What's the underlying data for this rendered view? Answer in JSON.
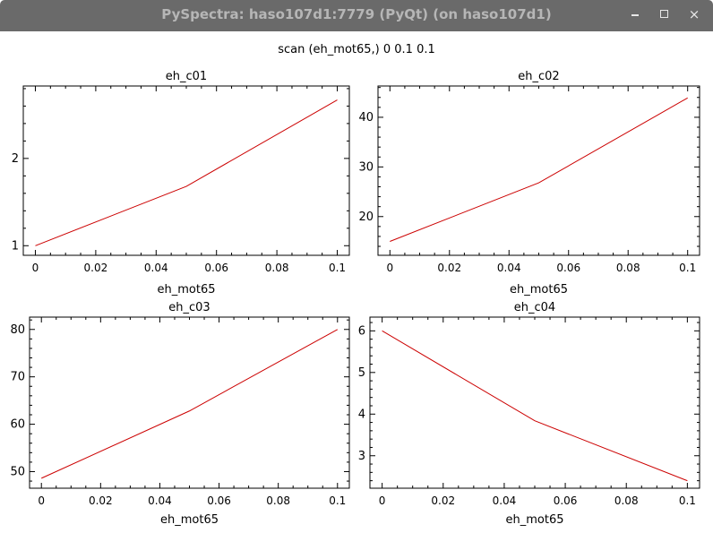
{
  "window": {
    "title": "PySpectra: haso107d1:7779 (PyQt) (on haso107d1)",
    "buttons": [
      "minimize-icon",
      "maximize-icon",
      "close-icon"
    ],
    "close_glyph": "×"
  },
  "figure": {
    "title": "scan (eh_mot65,) 0 0.1 0.1"
  },
  "colors": {
    "line": "#cc0000",
    "titlebar": "#6a6a6a"
  },
  "chart_data": [
    {
      "type": "line",
      "title": "eh_c01",
      "xlabel": "",
      "x": [
        0,
        0.05,
        0.1
      ],
      "series": [
        {
          "values": [
            1.0,
            1.68,
            2.67
          ]
        }
      ],
      "xlim": [
        -0.004,
        0.104
      ],
      "ylim": [
        0.89,
        2.83
      ],
      "xticks": [
        0,
        0.02,
        0.04,
        0.06,
        0.08,
        0.1
      ],
      "xticklabels": [
        "0",
        "0.02",
        "0.04",
        "0.06",
        "0.08",
        "0.1"
      ],
      "yticks": [
        1,
        2
      ],
      "yticklabels": [
        "1",
        "2"
      ]
    },
    {
      "type": "line",
      "title": "eh_c02",
      "xlabel": "",
      "x": [
        0,
        0.05,
        0.1
      ],
      "series": [
        {
          "values": [
            15.0,
            26.8,
            43.9
          ]
        }
      ],
      "xlim": [
        -0.004,
        0.104
      ],
      "ylim": [
        12.2,
        46.3
      ],
      "xticks": [
        0,
        0.02,
        0.04,
        0.06,
        0.08,
        0.1
      ],
      "xticklabels": [
        "0",
        "0.02",
        "0.04",
        "0.06",
        "0.08",
        "0.1"
      ],
      "yticks": [
        20,
        30,
        40
      ],
      "yticklabels": [
        "20",
        "30",
        "40"
      ]
    },
    {
      "type": "line",
      "title": "eh_c03",
      "xlabel": "eh_mot65",
      "x": [
        0,
        0.05,
        0.1
      ],
      "series": [
        {
          "values": [
            48.6,
            62.8,
            80.0
          ]
        }
      ],
      "xlim": [
        -0.004,
        0.104
      ],
      "ylim": [
        46.5,
        82.6
      ],
      "xticks": [
        0,
        0.02,
        0.04,
        0.06,
        0.08,
        0.1
      ],
      "xticklabels": [
        "0",
        "0.02",
        "0.04",
        "0.06",
        "0.08",
        "0.1"
      ],
      "yticks": [
        50,
        60,
        70,
        80
      ],
      "yticklabels": [
        "50",
        "60",
        "70",
        "80"
      ]
    },
    {
      "type": "line",
      "title": "eh_c04",
      "xlabel": "eh_mot65",
      "x": [
        0,
        0.05,
        0.1
      ],
      "series": [
        {
          "values": [
            6.0,
            3.84,
            2.4
          ]
        }
      ],
      "xlim": [
        -0.004,
        0.104
      ],
      "ylim": [
        2.22,
        6.33
      ],
      "xticks": [
        0,
        0.02,
        0.04,
        0.06,
        0.08,
        0.1
      ],
      "xticklabels": [
        "0",
        "0.02",
        "0.04",
        "0.06",
        "0.08",
        "0.1"
      ],
      "yticks": [
        3,
        4,
        5,
        6
      ],
      "yticklabels": [
        "3",
        "4",
        "5",
        "6"
      ]
    }
  ],
  "xlabels_upper": [
    "eh_mot65",
    "eh_mot65"
  ]
}
